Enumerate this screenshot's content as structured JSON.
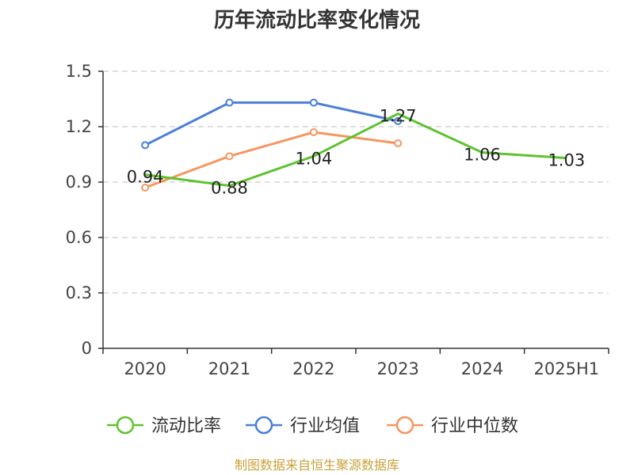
{
  "chart_data": {
    "type": "line",
    "title": "历年流动比率变化情况",
    "categories": [
      "2020",
      "2021",
      "2022",
      "2023",
      "2024",
      "2025H1"
    ],
    "ylim": [
      0,
      1.5
    ],
    "yticks": [
      "0",
      "0.3",
      "0.6",
      "0.9",
      "1.2",
      "1.5"
    ],
    "grid": true,
    "legend_position": "bottom",
    "series": [
      {
        "name": "流动比率",
        "color": "#5ec22f",
        "values": [
          0.94,
          0.88,
          1.04,
          1.27,
          1.06,
          1.03
        ],
        "labels": [
          "0.94",
          "0.88",
          "1.04",
          "1.27",
          "1.06",
          "1.03"
        ]
      },
      {
        "name": "行业均值",
        "color": "#4a7fd6",
        "values": [
          1.1,
          1.33,
          1.33,
          1.23,
          null,
          null
        ]
      },
      {
        "name": "行业中位数",
        "color": "#f59660",
        "values": [
          0.87,
          1.04,
          1.17,
          1.11,
          null,
          null
        ]
      }
    ]
  },
  "source_text": "制图数据来自恒生聚源数据库"
}
